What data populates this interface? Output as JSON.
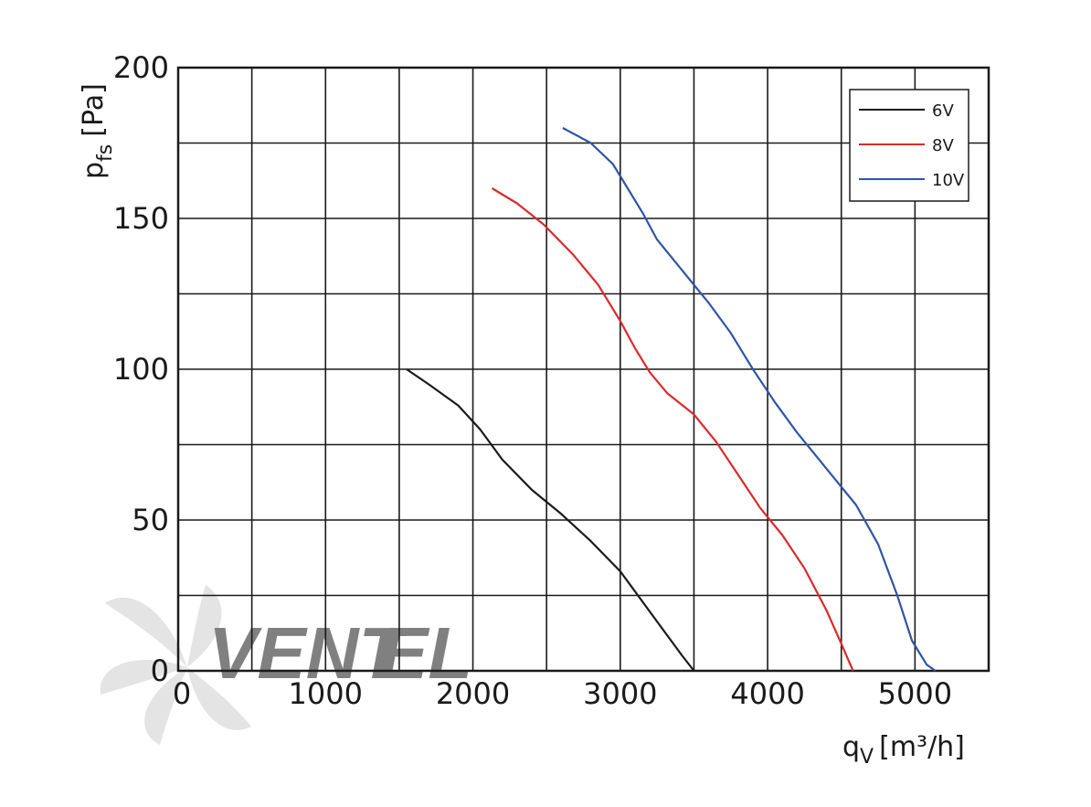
{
  "chart_data": {
    "type": "line",
    "title": "",
    "xlabel": {
      "main": "q",
      "sub": "V",
      "unit": "[m³/h]"
    },
    "ylabel": {
      "main": "p",
      "sub": "fs",
      "unit": "[Pa]"
    },
    "xlim": [
      0,
      5500
    ],
    "ylim": [
      0,
      200
    ],
    "x_ticks": [
      0,
      1000,
      2000,
      3000,
      4000,
      5000
    ],
    "x_tick_labels": [
      "0",
      "1000",
      "2000",
      "3000",
      "4000",
      "5000"
    ],
    "y_ticks": [
      0,
      50,
      100,
      150,
      200
    ],
    "y_tick_labels": [
      "0",
      "50",
      "100",
      "150",
      "200"
    ],
    "grid": true,
    "legend_position": "top-right",
    "series": [
      {
        "name": "6V",
        "color": "#1a1a1a",
        "points": [
          [
            1550,
            100
          ],
          [
            1700,
            95
          ],
          [
            1900,
            88
          ],
          [
            2050,
            80
          ],
          [
            2200,
            70
          ],
          [
            2400,
            60
          ],
          [
            2600,
            52
          ],
          [
            2800,
            43
          ],
          [
            3000,
            33
          ],
          [
            3150,
            23
          ],
          [
            3300,
            13
          ],
          [
            3420,
            5
          ],
          [
            3500,
            0
          ]
        ]
      },
      {
        "name": "8V",
        "color": "#d92b2b",
        "points": [
          [
            2130,
            160
          ],
          [
            2300,
            155
          ],
          [
            2480,
            148
          ],
          [
            2680,
            138
          ],
          [
            2850,
            128
          ],
          [
            3000,
            116
          ],
          [
            3100,
            107
          ],
          [
            3200,
            99
          ],
          [
            3320,
            92
          ],
          [
            3500,
            85
          ],
          [
            3650,
            76
          ],
          [
            3800,
            65
          ],
          [
            3950,
            54
          ],
          [
            4100,
            45
          ],
          [
            4250,
            34
          ],
          [
            4400,
            20
          ],
          [
            4500,
            9
          ],
          [
            4580,
            0
          ]
        ]
      },
      {
        "name": "10V",
        "color": "#2f55a4",
        "points": [
          [
            2610,
            180
          ],
          [
            2800,
            175
          ],
          [
            2950,
            168
          ],
          [
            3050,
            160
          ],
          [
            3150,
            152
          ],
          [
            3250,
            143
          ],
          [
            3400,
            134
          ],
          [
            3600,
            122
          ],
          [
            3750,
            112
          ],
          [
            3900,
            100
          ],
          [
            4050,
            89
          ],
          [
            4200,
            79
          ],
          [
            4400,
            67
          ],
          [
            4600,
            55
          ],
          [
            4750,
            42
          ],
          [
            4880,
            25
          ],
          [
            4980,
            10
          ],
          [
            5080,
            2
          ],
          [
            5140,
            0
          ]
        ]
      }
    ]
  },
  "watermark": {
    "text": "Ventel",
    "color_main": "#c8c8c8",
    "color_accent": "#a9c9e8",
    "icon": "fan-icon"
  }
}
